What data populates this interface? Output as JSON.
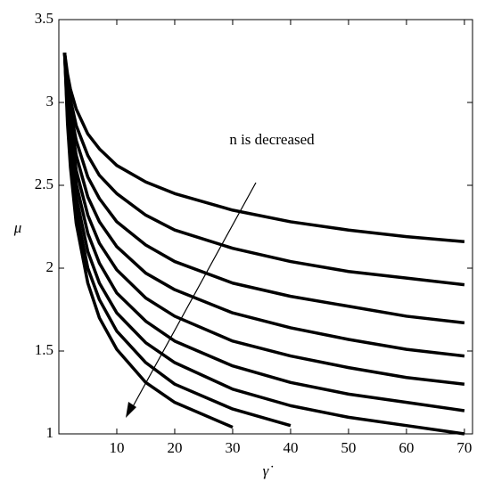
{
  "chart_data": {
    "type": "line",
    "x_label": "γ̇",
    "y_label": "μ",
    "annotation": "n is decreased",
    "x": [
      1,
      1.5,
      2,
      3,
      5,
      7,
      10,
      15,
      20,
      30,
      40,
      50,
      60,
      70
    ],
    "series": [
      {
        "color": "#000000",
        "values": [
          3.3,
          3.17,
          3.08,
          2.96,
          2.81,
          2.72,
          2.62,
          2.52,
          2.45,
          2.35,
          2.28,
          2.23,
          2.19,
          2.16
        ]
      },
      {
        "color": "#000000",
        "values": [
          3.3,
          3.13,
          3.02,
          2.86,
          2.68,
          2.56,
          2.45,
          2.32,
          2.23,
          2.12,
          2.04,
          1.98,
          1.94,
          1.9
        ]
      },
      {
        "color": "#000000",
        "values": [
          3.3,
          3.09,
          2.95,
          2.77,
          2.55,
          2.42,
          2.28,
          2.14,
          2.04,
          1.91,
          1.83,
          1.77,
          1.71,
          1.67
        ]
      },
      {
        "color": "#000000",
        "values": [
          3.3,
          3.06,
          2.89,
          2.68,
          2.43,
          2.28,
          2.13,
          1.97,
          1.87,
          1.73,
          1.64,
          1.57,
          1.51,
          1.47
        ]
      },
      {
        "color": "#000000",
        "values": [
          3.3,
          3.02,
          2.83,
          2.59,
          2.32,
          2.15,
          1.99,
          1.82,
          1.71,
          1.56,
          1.47,
          1.4,
          1.34,
          1.3
        ]
      },
      {
        "color": "#000000",
        "values": [
          3.3,
          2.98,
          2.78,
          2.51,
          2.21,
          2.03,
          1.85,
          1.68,
          1.56,
          1.41,
          1.31,
          1.24,
          1.19,
          1.14
        ]
      },
      {
        "color": "#000000",
        "values": [
          3.3,
          2.95,
          2.72,
          2.43,
          2.1,
          1.91,
          1.73,
          1.55,
          1.43,
          1.27,
          1.17,
          1.1,
          1.05,
          1.0
        ]
      },
      {
        "color": "#000000",
        "values": [
          3.3,
          2.91,
          2.66,
          2.35,
          2.0,
          1.81,
          1.62,
          1.43,
          1.3,
          1.15,
          1.05,
          null,
          null,
          null
        ]
      },
      {
        "color": "#000000",
        "values": [
          3.3,
          2.87,
          2.61,
          2.27,
          1.91,
          1.7,
          1.51,
          1.31,
          1.19,
          1.04,
          null,
          null,
          null,
          null
        ]
      }
    ],
    "xlim": [
      0,
      71.4
    ],
    "ylim": [
      1,
      3.5
    ],
    "xticks": [
      10,
      20,
      30,
      40,
      50,
      60,
      70
    ],
    "yticks": [
      1,
      1.5,
      2,
      2.5,
      3,
      3.5
    ],
    "grid": false
  }
}
